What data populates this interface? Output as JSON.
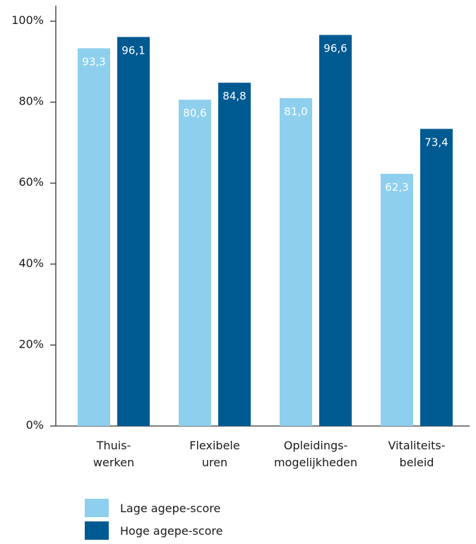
{
  "chart_data": {
    "type": "bar",
    "categories": [
      [
        "Thuis-",
        "werken"
      ],
      [
        "Flexibele",
        "uren"
      ],
      [
        "Opleidings-",
        "mogelijkheden"
      ],
      [
        "Vitaliteits-",
        "beleid"
      ]
    ],
    "series": [
      {
        "name": "Lage agepe-score",
        "color": "#8ecfee",
        "values": [
          93.3,
          80.6,
          81.0,
          62.3
        ],
        "labels": [
          "93,3",
          "80,6",
          "81,0",
          "62,3"
        ]
      },
      {
        "name": "Hoge agepe-score",
        "color": "#005a92",
        "values": [
          96.1,
          84.8,
          96.6,
          73.4
        ],
        "labels": [
          "96,1",
          "84,8",
          "96,6",
          "73,4"
        ]
      }
    ],
    "yticks": [
      "0%",
      "20%",
      "40%",
      "60%",
      "80%",
      "100%"
    ],
    "ylim": [
      0,
      100
    ],
    "grid": false,
    "legend": "bottom-left"
  }
}
